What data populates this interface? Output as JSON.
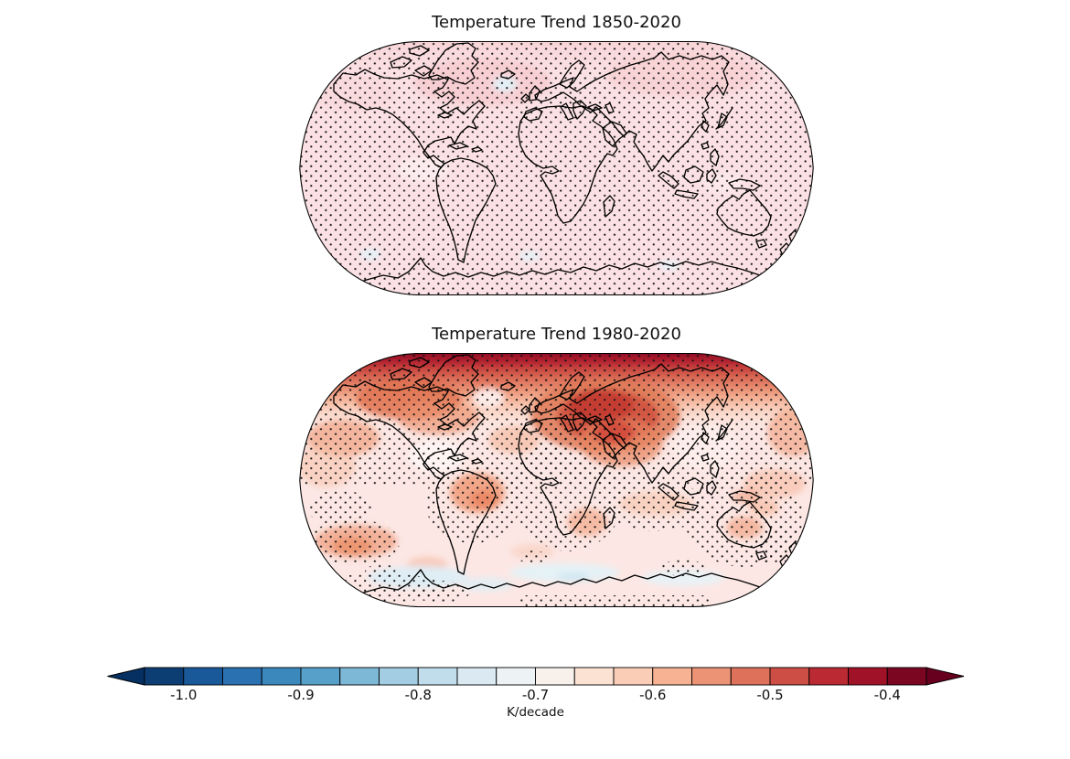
{
  "figure": {
    "background": "#ffffff",
    "panels": [
      {
        "id": "map-1850-2020",
        "title": "Temperature Trend 1850-2020"
      },
      {
        "id": "map-1980-2020",
        "title": "Temperature Trend 1980-2020"
      }
    ],
    "colorbar": {
      "label": "K/decade",
      "ticks": [
        "-1.0",
        "-0.9",
        "-0.8",
        "-0.7",
        "-0.6",
        "-0.5",
        "-0.4"
      ],
      "extend": "both",
      "under_arrow_color": "#053061",
      "over_arrow_color": "#67001f",
      "segment_colors": [
        "#0c3e74",
        "#1a5999",
        "#2a71b2",
        "#3b88bd",
        "#57a0ca",
        "#7eb8d7",
        "#a2cde2",
        "#c1ddec",
        "#dae9f2",
        "#edf2f5",
        "#f8f0eb",
        "#fbe2d3",
        "#facdb6",
        "#f6b293",
        "#ec9375",
        "#dd715a",
        "#cd4e44",
        "#bb2a33",
        "#9f1228",
        "#7a0622"
      ]
    }
  },
  "chart_data": {
    "type": "heatmap",
    "subtype": "global filled-contour temperature-trend maps (Robinson projection) with significance stippling",
    "colorbar": {
      "label": "K/decade",
      "tick_values": [
        -1.0,
        -0.9,
        -0.8,
        -0.7,
        -0.6,
        -0.5,
        -0.4
      ],
      "displayed_range": [
        -1.033,
        -0.367
      ],
      "n_segments": 20,
      "colormap": "RdBu_r (dark blue through white to dark red)",
      "extend": "both"
    },
    "panels": [
      {
        "title": "Temperature Trend 1850-2020",
        "summary": "Nearly uniform pale-pink field over the whole globe; dense black stippling covers essentially the entire map; slightly deeper pink over the Arctic, North Atlantic and Siberia; a few tiny pale-blue spots (south of Greenland and in the Southern Ocean).",
        "stippling": "global",
        "regions": [
          {
            "region": "global field",
            "approx_value": -0.6,
            "stippled": true
          },
          {
            "region": "Arctic / North Atlantic / Siberia band",
            "approx_value": -0.57,
            "stippled": true
          },
          {
            "region": "small spots south of Greenland and Southern Ocean",
            "approx_value": -0.7,
            "stippled": true
          }
        ]
      },
      {
        "title": "Temperature Trend 1980-2020",
        "summary": "Strong warming pattern: dark-maroon Arctic cap, red maximum over eastern Europe / western Russia, orange over northeast Canada and northern continents, orange patches over Amazon, southern Africa, Australia and the subtropical South Pacific, pale-pink tropical oceans, pale-blue Southern Ocean bands and southeast Pacific, whitish North Atlantic warming hole south of Greenland.",
        "stippling": "Arctic, northern continents, Africa, Amazon, Indian Ocean, western Pacific / Australia, scattered Southern Ocean and Antarctic Peninsula",
        "regions": [
          {
            "region": "Arctic cap",
            "approx_value": -0.38,
            "stippled": true
          },
          {
            "region": "Eastern Europe / Western Russia maximum",
            "approx_value": -0.44,
            "stippled": true
          },
          {
            "region": "Northeast Canada / Hudson Bay",
            "approx_value": -0.47,
            "stippled": true
          },
          {
            "region": "Central Asia / Middle East",
            "approx_value": -0.5,
            "stippled": true
          },
          {
            "region": "Amazon / central South America",
            "approx_value": -0.52,
            "stippled": true
          },
          {
            "region": "Southern Africa",
            "approx_value": -0.53,
            "stippled": true
          },
          {
            "region": "Australia",
            "approx_value": -0.53,
            "stippled": true
          },
          {
            "region": "South Pacific subtropical patches",
            "approx_value": -0.52,
            "stippled": true
          },
          {
            "region": "tropical and subtropical oceans",
            "approx_value": -0.59,
            "stippled": false
          },
          {
            "region": "North Atlantic warming hole south of Greenland",
            "approx_value": -0.64,
            "stippled": false
          },
          {
            "region": "Southeast Pacific",
            "approx_value": -0.67,
            "stippled": false
          },
          {
            "region": "Southern Ocean pale-blue bands",
            "approx_value": -0.68,
            "stippled": false
          }
        ]
      }
    ]
  }
}
